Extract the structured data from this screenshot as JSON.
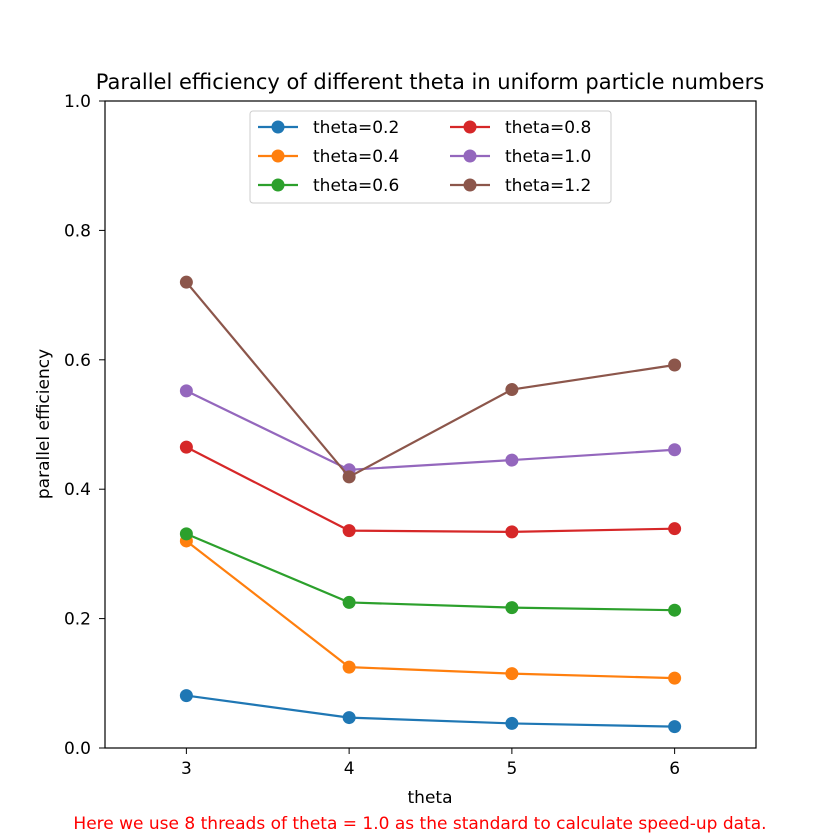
{
  "chart_data": {
    "type": "line",
    "title": "Parallel efficiency of different theta in uniform particle numbers",
    "xlabel": "theta",
    "ylabel": "parallel efficiency",
    "x": [
      3,
      4,
      5,
      6
    ],
    "xlim": [
      2.5,
      6.5
    ],
    "ylim": [
      0.0,
      1.0
    ],
    "xticks": [
      "3",
      "4",
      "5",
      "6"
    ],
    "yticks": [
      "0.0",
      "0.2",
      "0.4",
      "0.6",
      "0.8",
      "1.0"
    ],
    "grid": false,
    "legend_position": "upper center",
    "legend_columns": 2,
    "series": [
      {
        "name": "theta=0.2",
        "color": "#1f77b4",
        "values": [
          0.081,
          0.047,
          0.038,
          0.033
        ]
      },
      {
        "name": "theta=0.4",
        "color": "#ff7f0e",
        "values": [
          0.32,
          0.125,
          0.115,
          0.108
        ]
      },
      {
        "name": "theta=0.6",
        "color": "#2ca02c",
        "values": [
          0.331,
          0.225,
          0.217,
          0.213
        ]
      },
      {
        "name": "theta=0.8",
        "color": "#d62728",
        "values": [
          0.465,
          0.336,
          0.334,
          0.339
        ]
      },
      {
        "name": "theta=1.0",
        "color": "#9467bd",
        "values": [
          0.552,
          0.43,
          0.445,
          0.461
        ]
      },
      {
        "name": "theta=1.2",
        "color": "#8c564b",
        "values": [
          0.72,
          0.419,
          0.554,
          0.592
        ]
      }
    ]
  },
  "footnote": "Here we use 8 threads of theta = 1.0 as the standard to calculate speed-up data."
}
